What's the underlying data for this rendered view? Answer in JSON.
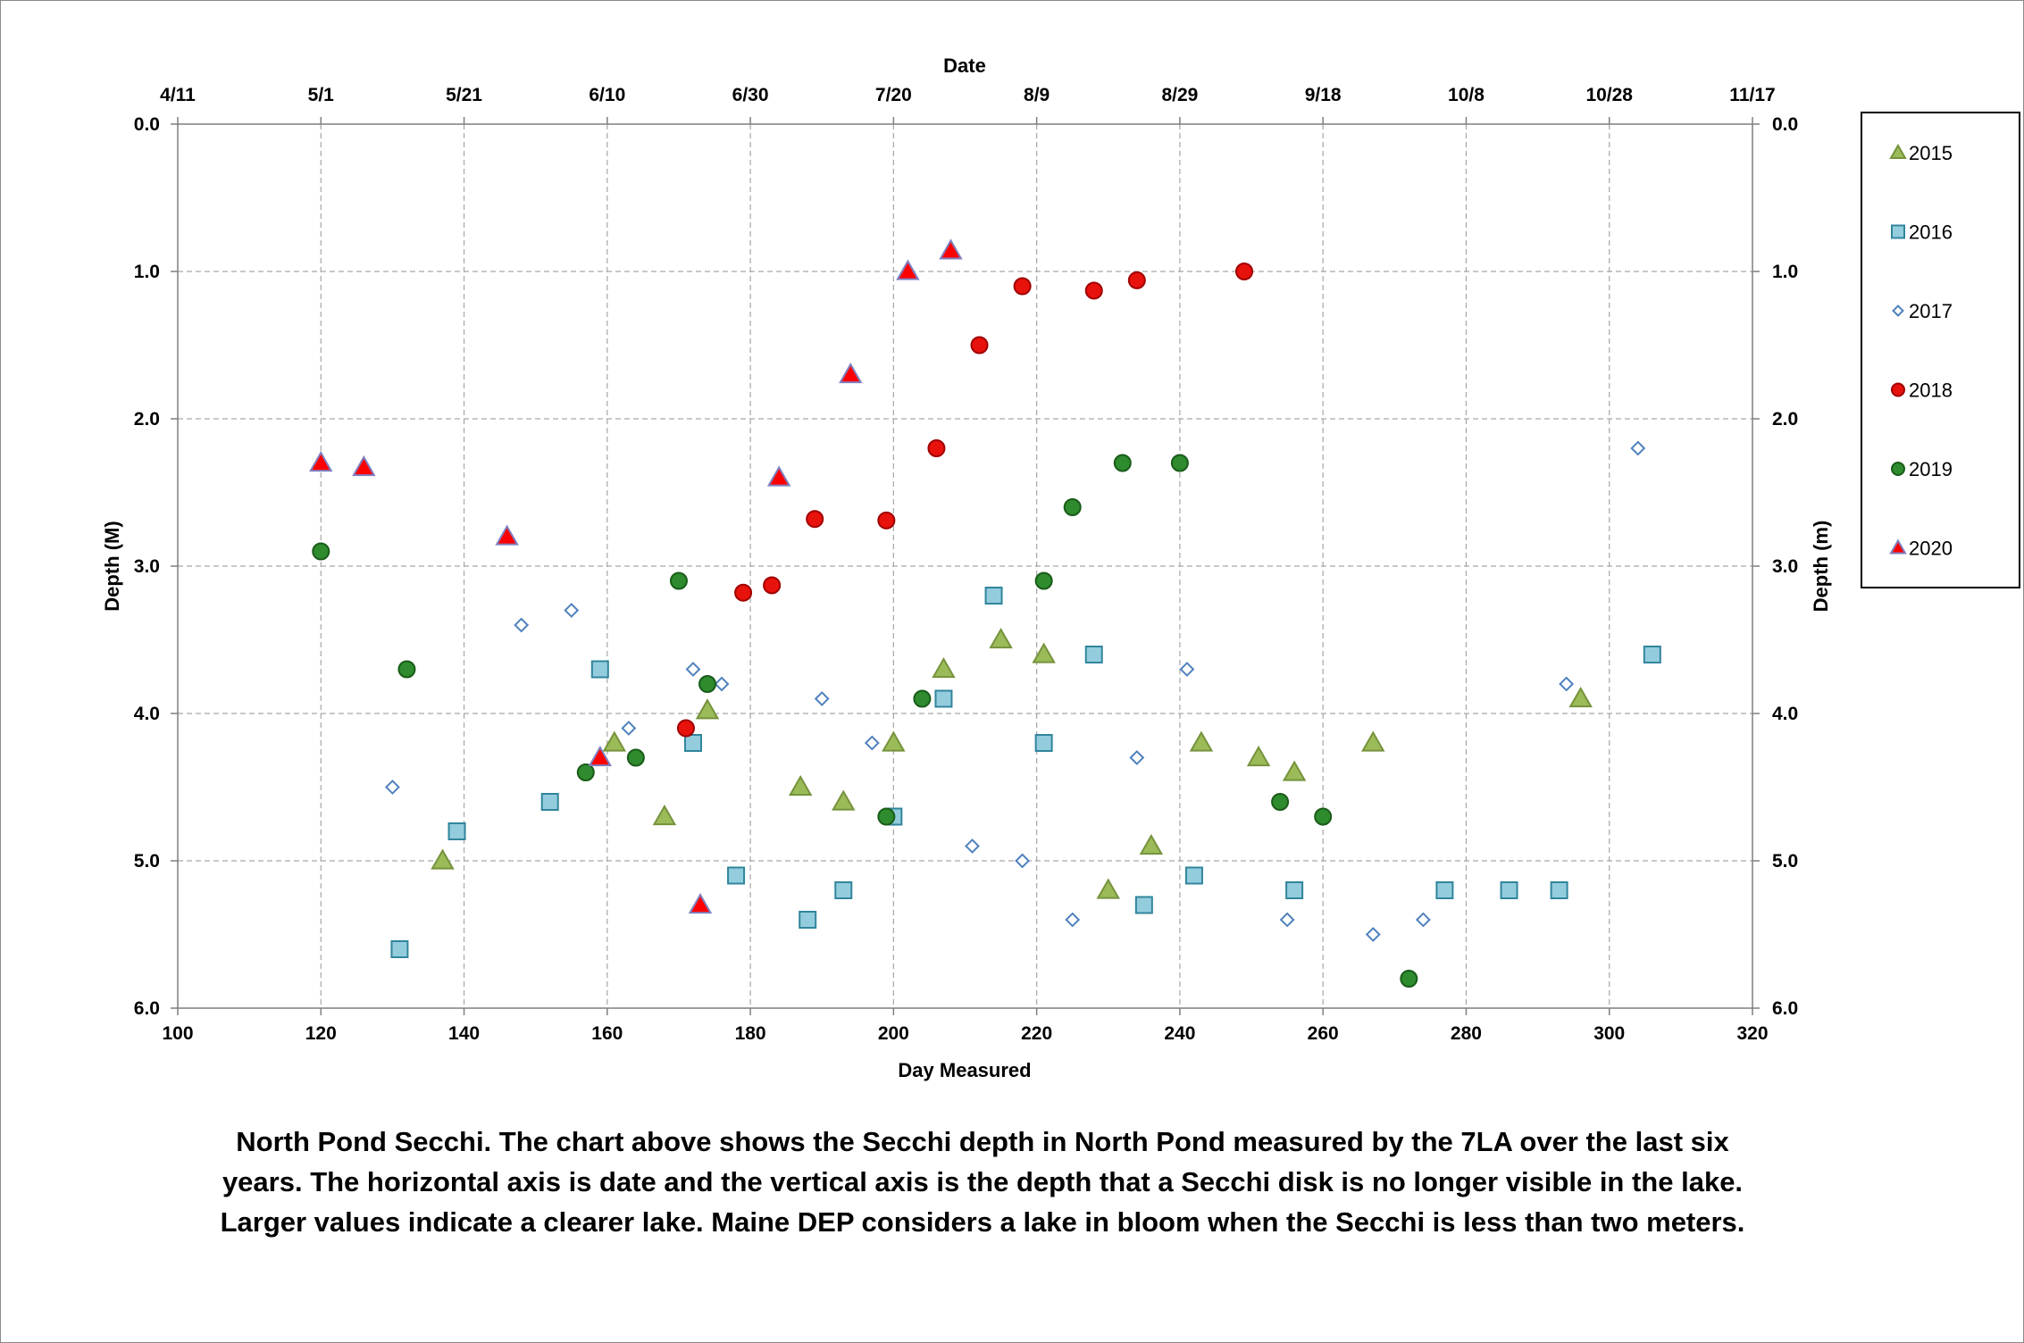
{
  "chart_data": {
    "type": "scatter",
    "xlabel": "Day Measured",
    "x2label": "Date",
    "ylabel": "Depth (M)",
    "y2label": "Depth (m)",
    "xlim": [
      100,
      320
    ],
    "ylim": [
      0,
      6
    ],
    "y_inverted": true,
    "x_ticks": [
      "100",
      "120",
      "140",
      "160",
      "180",
      "200",
      "220",
      "240",
      "260",
      "280",
      "300",
      "320"
    ],
    "x_ticks_values": [
      100,
      120,
      140,
      160,
      180,
      200,
      220,
      240,
      260,
      280,
      300,
      320
    ],
    "x2_ticks": [
      "4/11",
      "5/1",
      "5/21",
      "6/10",
      "6/30",
      "7/20",
      "8/9",
      "8/29",
      "9/18",
      "10/8",
      "10/28",
      "11/17"
    ],
    "y_ticks": [
      "0.0",
      "1.0",
      "2.0",
      "3.0",
      "4.0",
      "5.0",
      "6.0"
    ],
    "y_ticks_values": [
      0,
      1,
      2,
      3,
      4,
      5,
      6
    ],
    "grid": true,
    "legend_position": "right",
    "series": [
      {
        "name": "2015",
        "marker": "triangle",
        "color": "#9bbb59",
        "stroke": "#76923c",
        "points": [
          [
            137,
            5.0
          ],
          [
            161,
            4.2
          ],
          [
            168,
            4.7
          ],
          [
            174,
            3.98
          ],
          [
            187,
            4.5
          ],
          [
            193,
            4.6
          ],
          [
            200,
            4.2
          ],
          [
            207,
            3.7
          ],
          [
            215,
            3.5
          ],
          [
            221,
            3.6
          ],
          [
            230,
            5.2
          ],
          [
            236,
            4.9
          ],
          [
            243,
            4.2
          ],
          [
            251,
            4.3
          ],
          [
            256,
            4.4
          ],
          [
            267,
            4.2
          ],
          [
            296,
            3.9
          ]
        ]
      },
      {
        "name": "2016",
        "marker": "square",
        "color": "#93cddd",
        "stroke": "#31859c",
        "points": [
          [
            131,
            5.6
          ],
          [
            139,
            4.8
          ],
          [
            152,
            4.6
          ],
          [
            159,
            3.7
          ],
          [
            172,
            4.2
          ],
          [
            178,
            5.1
          ],
          [
            188,
            5.4
          ],
          [
            193,
            5.2
          ],
          [
            200,
            4.7
          ],
          [
            207,
            3.9
          ],
          [
            214,
            3.2
          ],
          [
            221,
            4.2
          ],
          [
            228,
            3.6
          ],
          [
            235,
            5.3
          ],
          [
            242,
            5.1
          ],
          [
            256,
            5.2
          ],
          [
            277,
            5.2
          ],
          [
            286,
            5.2
          ],
          [
            293,
            5.2
          ],
          [
            306,
            3.6
          ]
        ]
      },
      {
        "name": "2017",
        "marker": "diamond",
        "color": "#ffffff",
        "stroke": "#4f81bd",
        "points": [
          [
            130,
            4.5
          ],
          [
            148,
            3.4
          ],
          [
            155,
            3.3
          ],
          [
            163,
            4.1
          ],
          [
            172,
            3.7
          ],
          [
            176,
            3.8
          ],
          [
            190,
            3.9
          ],
          [
            197,
            4.2
          ],
          [
            211,
            4.9
          ],
          [
            218,
            5.0
          ],
          [
            225,
            5.4
          ],
          [
            234,
            4.3
          ],
          [
            241,
            3.7
          ],
          [
            255,
            5.4
          ],
          [
            267,
            5.5
          ],
          [
            274,
            5.4
          ],
          [
            294,
            3.8
          ],
          [
            304,
            2.2
          ]
        ]
      },
      {
        "name": "2018",
        "marker": "circle",
        "color": "#e8120c",
        "stroke": "#a00000",
        "points": [
          [
            171,
            4.1
          ],
          [
            179,
            3.18
          ],
          [
            183,
            3.13
          ],
          [
            189,
            2.68
          ],
          [
            199,
            2.69
          ],
          [
            206,
            2.2
          ],
          [
            212,
            1.5
          ],
          [
            218,
            1.1
          ],
          [
            228,
            1.13
          ],
          [
            234,
            1.06
          ],
          [
            249,
            1.0
          ]
        ]
      },
      {
        "name": "2019",
        "marker": "circle",
        "color": "#2e8b2e",
        "stroke": "#1a5c1a",
        "points": [
          [
            120,
            2.9
          ],
          [
            132,
            3.7
          ],
          [
            157,
            4.4
          ],
          [
            164,
            4.3
          ],
          [
            170,
            3.1
          ],
          [
            174,
            3.8
          ],
          [
            199,
            4.7
          ],
          [
            204,
            3.9
          ],
          [
            221,
            3.1
          ],
          [
            225,
            2.6
          ],
          [
            232,
            2.3
          ],
          [
            240,
            2.3
          ],
          [
            254,
            4.6
          ],
          [
            260,
            4.7
          ],
          [
            272,
            5.8
          ]
        ]
      },
      {
        "name": "2020",
        "marker": "triangle",
        "color": "#ff0000",
        "stroke": "#7f7fbf",
        "points": [
          [
            120,
            2.3
          ],
          [
            126,
            2.33
          ],
          [
            146,
            2.8
          ],
          [
            159,
            4.3
          ],
          [
            173,
            5.3
          ],
          [
            184,
            2.4
          ],
          [
            194,
            1.7
          ],
          [
            202,
            1.0
          ],
          [
            208,
            0.86
          ]
        ]
      }
    ]
  },
  "caption": {
    "line1": "North Pond Secchi.  The chart above shows the Secchi depth in North Pond measured by the 7LA over the last six",
    "line2": "years.   The horizontal axis is date and the vertical axis is the depth that a Secchi disk is no longer visible in the lake.",
    "line3": "Larger values indicate a clearer lake.  Maine DEP considers a lake in bloom when the Secchi is less than two meters."
  }
}
